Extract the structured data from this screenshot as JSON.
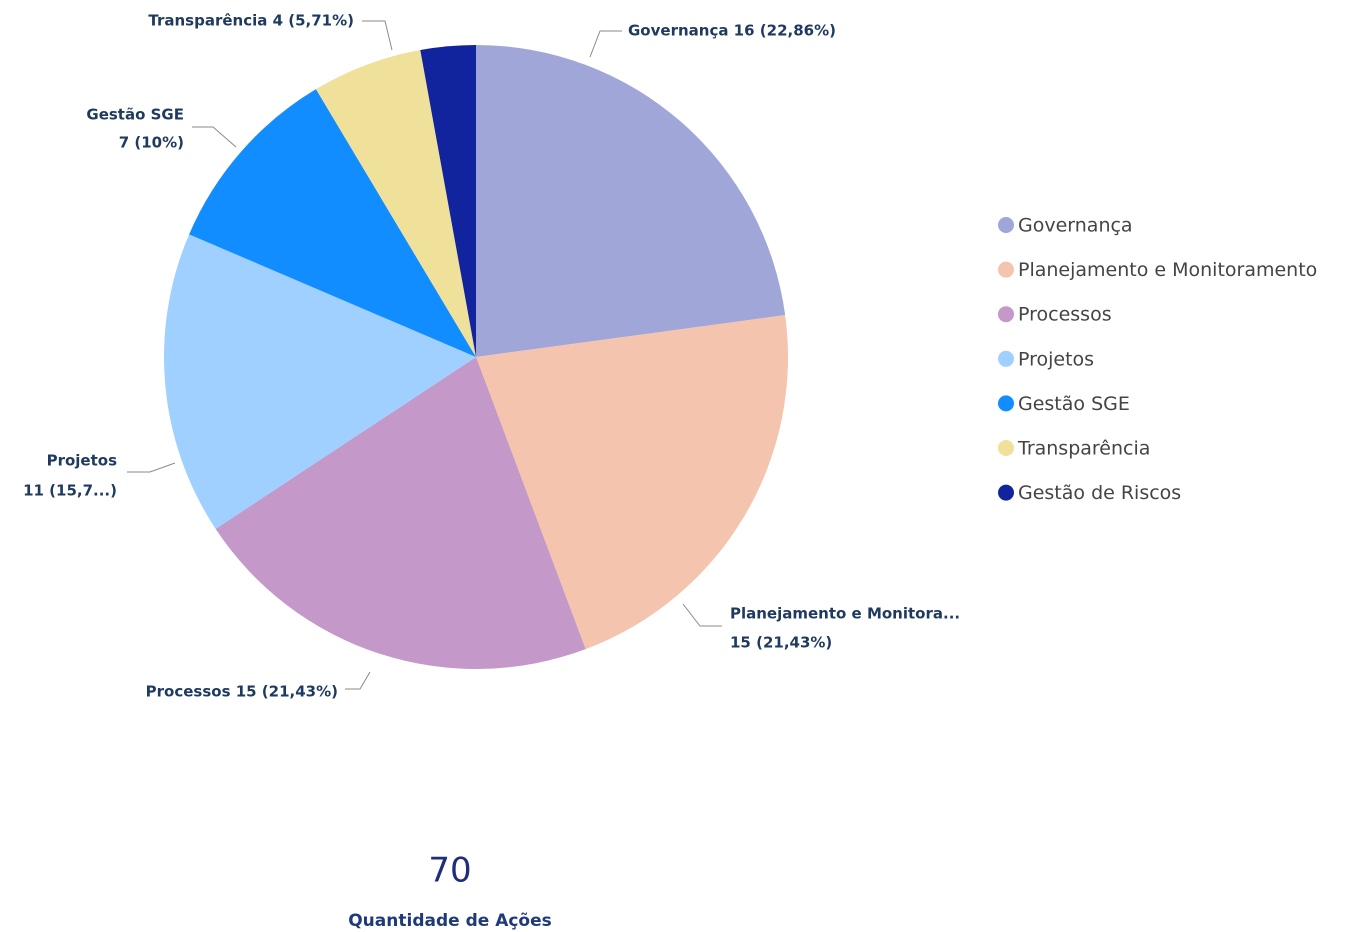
{
  "chart_data": {
    "type": "pie",
    "categories": [
      "Governança",
      "Planejamento e Monitoramento",
      "Processos",
      "Projetos",
      "Gestão SGE",
      "Transparência",
      "Gestão de Riscos"
    ],
    "values": [
      16,
      15,
      15,
      11,
      7,
      4,
      2
    ],
    "value_labels": [
      [
        "Governança 16 (22,86%)"
      ],
      [
        "Planejamento e Monitora...",
        "15 (21,43%)"
      ],
      [
        "Processos 15 (21,43%)"
      ],
      [
        "Projetos",
        "11 (15,7...)"
      ],
      [
        "Gestão SGE",
        "7 (10%)"
      ],
      [
        "Transparência 4 (5,71%)"
      ],
      null
    ],
    "colors": [
      "#A0A6D8",
      "#F4C4AE",
      "#C498C8",
      "#A0D0FF",
      "#118DFF",
      "#EFE09A",
      "#12239E"
    ],
    "legend": "right"
  },
  "card": {
    "value": 70,
    "label": "Quantidade de Ações"
  }
}
